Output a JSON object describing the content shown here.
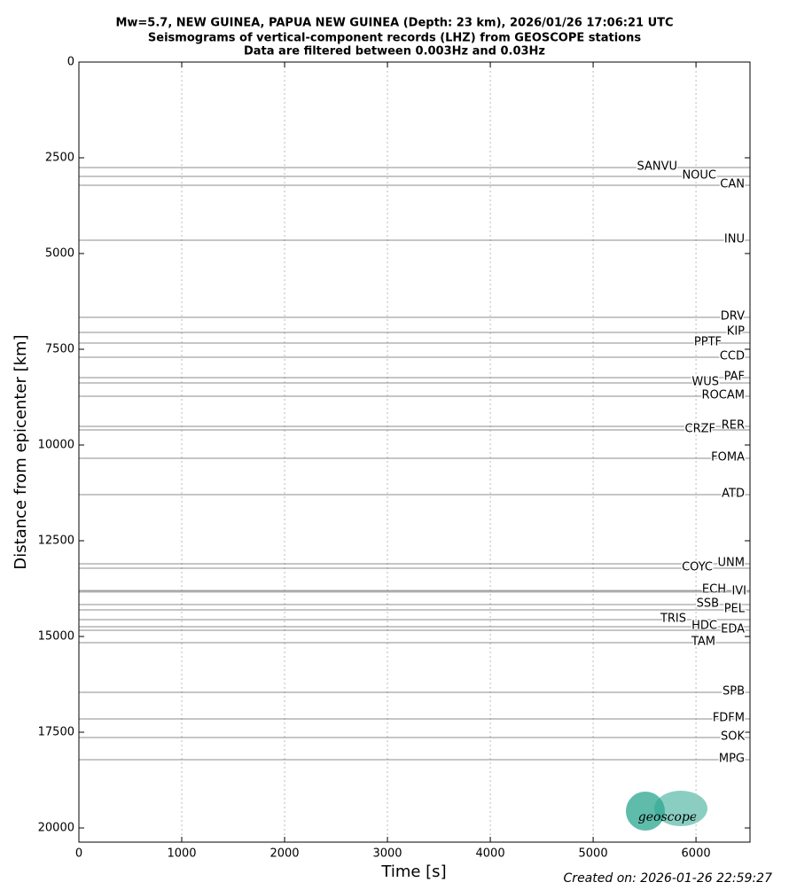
{
  "chart_data": {
    "type": "seismogram",
    "title": [
      "Mw=5.7, NEW GUINEA, PAPUA NEW GUINEA (Depth: 23 km), 2026/01/26 17:06:21 UTC",
      "Seismograms of vertical-component records (LHZ) from GEOSCOPE stations",
      "Data are filtered between 0.003Hz and 0.03Hz"
    ],
    "xlabel": "Time [s]",
    "ylabel": "Distance from epicenter [km]",
    "categories": [
      "SANVU",
      "NOUC",
      "CAN",
      "INU",
      "DRV",
      "KIP",
      "PPTF",
      "CCD",
      "PAF",
      "WUS",
      "ROCAM",
      "RER",
      "CRZF",
      "FOMA",
      "ATD",
      "UNM",
      "COYC",
      "ECH",
      "IVI",
      "SSB",
      "PEL",
      "TRIS",
      "HDC",
      "EDA",
      "TAM",
      "SPB",
      "FDFM",
      "SOK",
      "MPG"
    ],
    "values": [
      2755,
      2986,
      3218,
      4653,
      6667,
      7060,
      7338,
      7708,
      8241,
      8380,
      8727,
      9514,
      9606,
      10347,
      11296,
      13102,
      13218,
      13800,
      13840,
      14167,
      14306,
      14560,
      14745,
      14838,
      15162,
      16458,
      17153,
      17639,
      18218
    ],
    "color": "#666666",
    "xlim": [
      0,
      6525
    ],
    "xticks": [
      0,
      1000,
      2000,
      3000,
      4000,
      5000,
      6000
    ],
    "ylim": [
      0,
      20370
    ],
    "yticks": [
      0,
      2500,
      5000,
      7500,
      10000,
      12500,
      15000,
      17500,
      20000
    ],
    "y_inverted": true,
    "grid": "x",
    "footer": "Created on: 2026-01-26 22:59:27",
    "logo_text": "geoscope"
  }
}
